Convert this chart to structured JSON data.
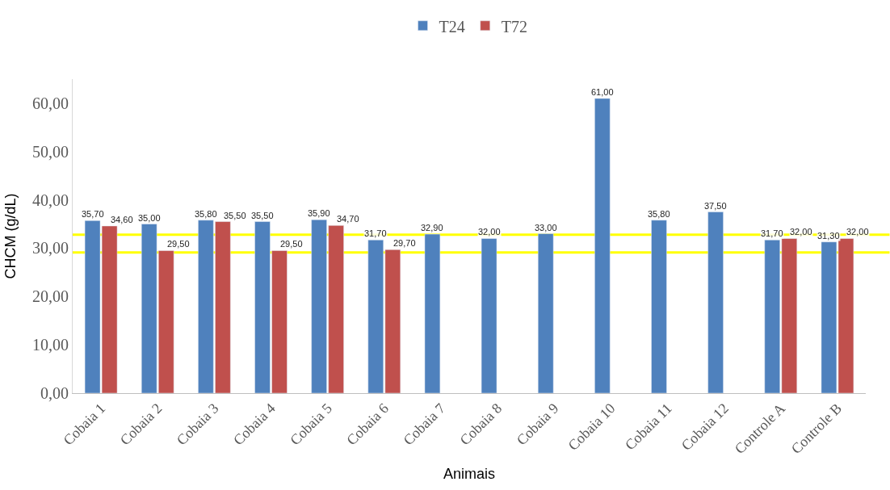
{
  "chart_data": {
    "type": "bar",
    "xlabel": "Animais",
    "ylabel": "CHCM (g/dL)",
    "categories": [
      "Cobaia 1",
      "Cobaia 2",
      "Cobaia 3",
      "Cobaia 4",
      "Cobaia 5",
      "Cobaia 6",
      "Cobaia 7",
      "Cobaia 8",
      "Cobaia 9",
      "Cobaia 10",
      "Cobaia 11",
      "Cobaia 12",
      "Controle A",
      "Controle B"
    ],
    "series": [
      {
        "name": "T24",
        "color": "#4f81bd",
        "values": [
          35.7,
          35.0,
          35.8,
          35.5,
          35.9,
          31.7,
          32.9,
          32.0,
          33.0,
          61.0,
          35.8,
          37.5,
          31.7,
          31.3
        ],
        "value_labels": [
          "35,70",
          "35,00",
          "35,80",
          "35,50",
          "35,90",
          "31,70",
          "32,90",
          "32,00",
          "33,00",
          "61,00",
          "35,80",
          "37,50",
          "31,70",
          "31,30"
        ]
      },
      {
        "name": "T72",
        "color": "#c0504d",
        "values": [
          34.6,
          29.5,
          35.5,
          29.5,
          34.7,
          29.7,
          null,
          null,
          null,
          null,
          null,
          null,
          32.0,
          32.0
        ],
        "value_labels": [
          "34,60",
          "29,50",
          "35,50",
          "29,50",
          "34,70",
          "29,70",
          null,
          null,
          null,
          null,
          null,
          null,
          "32,00",
          "32,00"
        ]
      }
    ],
    "ylim": [
      0,
      65
    ],
    "yticks": [
      {
        "value": 0,
        "label": "0,00"
      },
      {
        "value": 10,
        "label": "10,00"
      },
      {
        "value": 20,
        "label": "20,00"
      },
      {
        "value": 30,
        "label": "30,00"
      },
      {
        "value": 40,
        "label": "40,00"
      },
      {
        "value": 50,
        "label": "50,00"
      },
      {
        "value": 60,
        "label": "60,00"
      }
    ],
    "ref_lines": [
      {
        "axis": "y",
        "value": 32.8,
        "color": "#ffff00"
      },
      {
        "axis": "y",
        "value": 29.1,
        "color": "#ffff00"
      }
    ],
    "grid": false,
    "legend": "top"
  }
}
